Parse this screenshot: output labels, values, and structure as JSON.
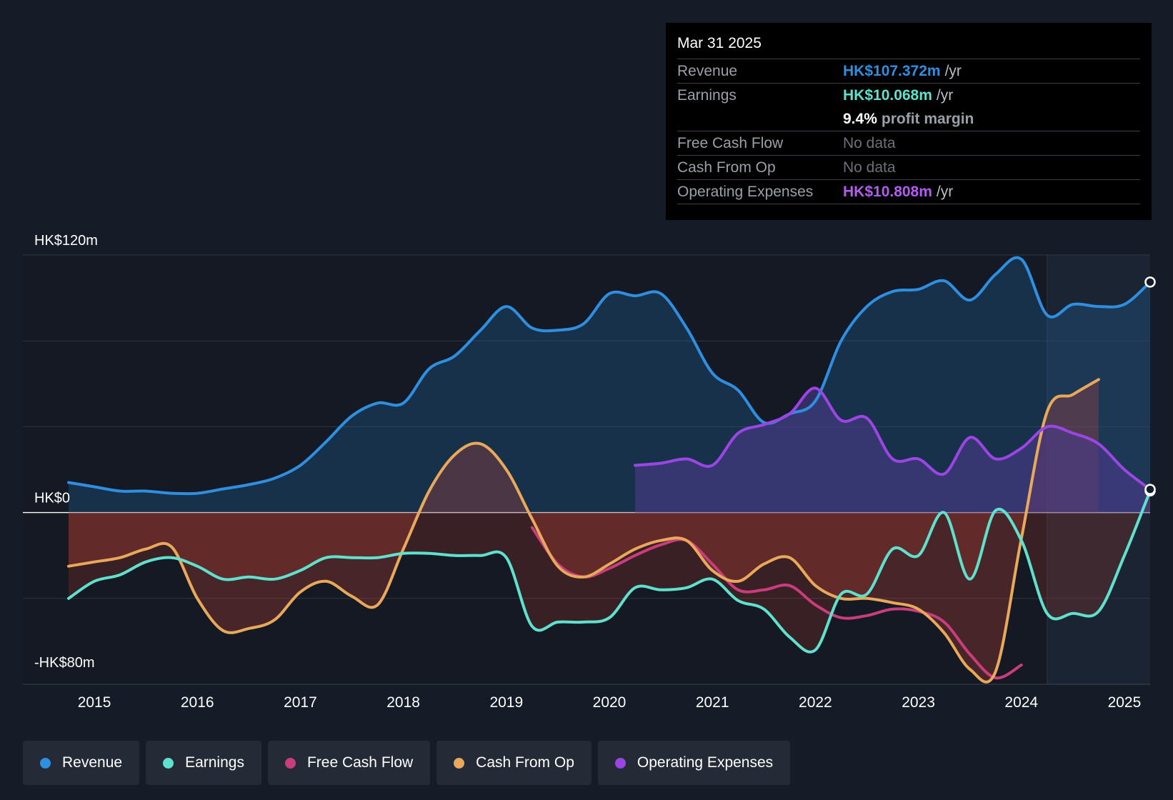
{
  "tooltip": {
    "date": "Mar 31 2025",
    "revenue": {
      "label": "Revenue",
      "value": "HK$107.372m",
      "unit": "/yr"
    },
    "earnings": {
      "label": "Earnings",
      "value": "HK$10.068m",
      "unit": "/yr"
    },
    "margin": {
      "value": "9.4%",
      "label": "profit margin"
    },
    "fcf": {
      "label": "Free Cash Flow",
      "value": "No data"
    },
    "cfo": {
      "label": "Cash From Op",
      "value": "No data"
    },
    "opex": {
      "label": "Operating Expenses",
      "value": "HK$10.808m",
      "unit": "/yr"
    }
  },
  "legend": [
    {
      "label": "Revenue",
      "color": "#2e8fe0"
    },
    {
      "label": "Earnings",
      "color": "#5ee1cd"
    },
    {
      "label": "Free Cash Flow",
      "color": "#c93d7c"
    },
    {
      "label": "Cash From Op",
      "color": "#e8a95a"
    },
    {
      "label": "Operating Expenses",
      "color": "#9b45e5"
    }
  ],
  "chart_data": {
    "type": "line",
    "title": "",
    "xlabel": "",
    "ylabel": "",
    "xlim": [
      2014.75,
      2025.25
    ],
    "ylim": [
      -80,
      120
    ],
    "y_axis_labels": [
      "HK$120m",
      "HK$0",
      "-HK$80m"
    ],
    "x_tick_labels": [
      "2015",
      "2016",
      "2017",
      "2018",
      "2019",
      "2020",
      "2021",
      "2022",
      "2023",
      "2024",
      "2025"
    ],
    "x_ticks": [
      2015,
      2016,
      2017,
      2018,
      2019,
      2020,
      2021,
      2022,
      2023,
      2024,
      2025
    ],
    "highlight_from": 2024.25,
    "series": [
      {
        "name": "Revenue",
        "color": "#2e8fe0",
        "fill": "#1f5f94",
        "x": [
          2014.75,
          2015.0,
          2015.25,
          2015.5,
          2015.75,
          2016.0,
          2016.25,
          2016.5,
          2016.75,
          2017.0,
          2017.25,
          2017.5,
          2017.75,
          2018.0,
          2018.25,
          2018.5,
          2018.75,
          2019.0,
          2019.25,
          2019.5,
          2019.75,
          2020.0,
          2020.25,
          2020.5,
          2020.75,
          2021.0,
          2021.25,
          2021.5,
          2021.75,
          2022.0,
          2022.25,
          2022.5,
          2022.75,
          2023.0,
          2023.25,
          2023.5,
          2023.75,
          2024.0,
          2024.25,
          2024.5,
          2024.75,
          2025.0,
          2025.25
        ],
        "values": [
          14,
          12,
          10,
          10,
          9,
          9,
          11,
          13,
          16,
          22,
          33,
          45,
          51,
          51,
          67,
          73,
          85,
          96,
          86,
          85,
          88,
          102,
          101,
          102,
          86,
          65,
          57,
          42,
          46,
          52,
          80,
          96,
          103,
          104,
          108,
          99,
          111,
          118,
          92,
          97,
          96,
          97,
          107.4
        ]
      },
      {
        "name": "Earnings",
        "color": "#5ee1cd",
        "x": [
          2014.75,
          2015.0,
          2015.25,
          2015.5,
          2015.75,
          2016.0,
          2016.25,
          2016.5,
          2016.75,
          2017.0,
          2017.25,
          2017.5,
          2017.75,
          2018.0,
          2018.25,
          2018.5,
          2018.75,
          2019.0,
          2019.25,
          2019.5,
          2019.75,
          2020.0,
          2020.25,
          2020.5,
          2020.75,
          2021.0,
          2021.25,
          2021.5,
          2021.75,
          2022.0,
          2022.25,
          2022.5,
          2022.75,
          2023.0,
          2023.25,
          2023.5,
          2023.75,
          2024.0,
          2024.25,
          2024.5,
          2024.75,
          2025.0,
          2025.25
        ],
        "values": [
          -40,
          -32,
          -29,
          -23,
          -21,
          -25,
          -31,
          -30,
          -31,
          -27,
          -21,
          -21,
          -21,
          -19,
          -19,
          -20,
          -20,
          -21,
          -53,
          -51,
          -51,
          -49,
          -35,
          -36,
          -35,
          -31,
          -41,
          -45,
          -58,
          -64,
          -38,
          -38,
          -17,
          -20,
          0,
          -31,
          1,
          -13,
          -47,
          -47,
          -46,
          -20,
          10.1
        ]
      },
      {
        "name": "Free Cash Flow",
        "color": "#c93d7c",
        "x": [
          2019.25,
          2019.5,
          2019.75,
          2020.0,
          2020.25,
          2020.5,
          2020.75,
          2021.0,
          2021.25,
          2021.5,
          2021.75,
          2022.0,
          2022.25,
          2022.5,
          2022.75,
          2023.0,
          2023.25,
          2023.5,
          2023.75,
          2024.0
        ],
        "values": [
          -7,
          -24,
          -30,
          -26,
          -20,
          -15,
          -13,
          -24,
          -36,
          -36,
          -34,
          -43,
          -49,
          -48,
          -45,
          -46,
          -51,
          -66,
          -77,
          -71
        ]
      },
      {
        "name": "Cash From Op",
        "color": "#e8a95a",
        "fill": "#7d8a9a",
        "x": [
          2014.75,
          2015.0,
          2015.25,
          2015.5,
          2015.75,
          2016.0,
          2016.25,
          2016.5,
          2016.75,
          2017.0,
          2017.25,
          2017.5,
          2017.75,
          2018.0,
          2018.25,
          2018.5,
          2018.75,
          2019.0,
          2019.25,
          2019.5,
          2019.75,
          2020.0,
          2020.25,
          2020.5,
          2020.75,
          2021.0,
          2021.25,
          2021.5,
          2021.75,
          2022.0,
          2022.25,
          2022.5,
          2022.75,
          2023.0,
          2023.25,
          2023.5,
          2023.75,
          2024.0,
          2024.25,
          2024.5,
          2024.75
        ],
        "values": [
          -25,
          -23,
          -21,
          -17,
          -16,
          -40,
          -55,
          -54,
          -50,
          -37,
          -32,
          -39,
          -43,
          -17,
          10,
          27,
          32,
          20,
          -3,
          -25,
          -30,
          -24,
          -17,
          -13,
          -13,
          -27,
          -32,
          -24,
          -21,
          -34,
          -40,
          -40,
          -42,
          -45,
          -56,
          -73,
          -74,
          -12,
          47,
          55,
          62
        ]
      },
      {
        "name": "Operating Expenses",
        "color": "#9b45e5",
        "fill": "#4b3a8c",
        "x": [
          2020.25,
          2020.5,
          2020.75,
          2021.0,
          2021.25,
          2021.5,
          2021.75,
          2022.0,
          2022.25,
          2022.5,
          2022.75,
          2023.0,
          2023.25,
          2023.5,
          2023.75,
          2024.0,
          2024.25,
          2024.5,
          2024.75,
          2025.0,
          2025.25
        ],
        "values": [
          22,
          23,
          25,
          22,
          37,
          41,
          46,
          58,
          43,
          44,
          25,
          25,
          18,
          35,
          25,
          30,
          40,
          37,
          32,
          20,
          10.8
        ]
      }
    ]
  }
}
